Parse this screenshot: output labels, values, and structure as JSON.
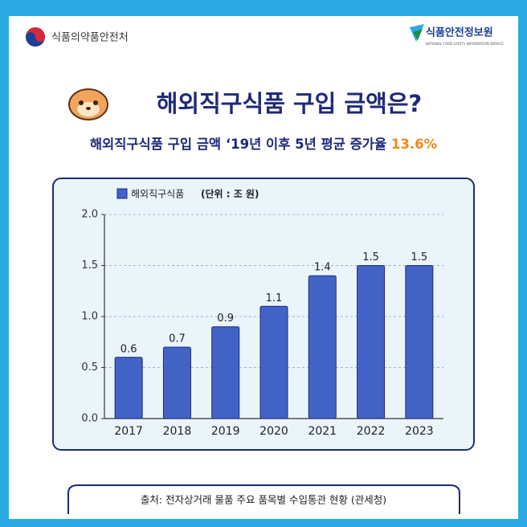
{
  "header": {
    "left_logo": "식품의약품안전처",
    "right_logo": "식품안전정보원",
    "right_logo_sub": "NATIONAL FOOD SAFETY INFORMATION SERVICE"
  },
  "chart_data": {
    "type": "bar",
    "title": "해외직구식품 구입 금액은?",
    "subtitle": "해외직구식품 구입 금액 ‘19년 이후 5년 평균 증가율",
    "subtitle_highlight": "13.6%",
    "unit": "(단위 : 조 원)",
    "categories": [
      "2017",
      "2018",
      "2019",
      "2020",
      "2021",
      "2022",
      "2023"
    ],
    "series": [
      {
        "name": "해외직구식품",
        "color": "#4263c6",
        "values": [
          0.6,
          0.7,
          0.9,
          1.1,
          1.4,
          1.5,
          1.5
        ]
      }
    ],
    "ylim": [
      0,
      2
    ],
    "yticks": [
      {
        "value": 0,
        "label": "0.0"
      },
      0.5,
      {
        "value": 1,
        "label": "1.0"
      },
      1.5,
      {
        "value": 2,
        "label": "2.0"
      }
    ],
    "grid": true
  },
  "source": "출처: 전자상거래 물품 주요 품목별 수입통관 현황 (관세청)"
}
